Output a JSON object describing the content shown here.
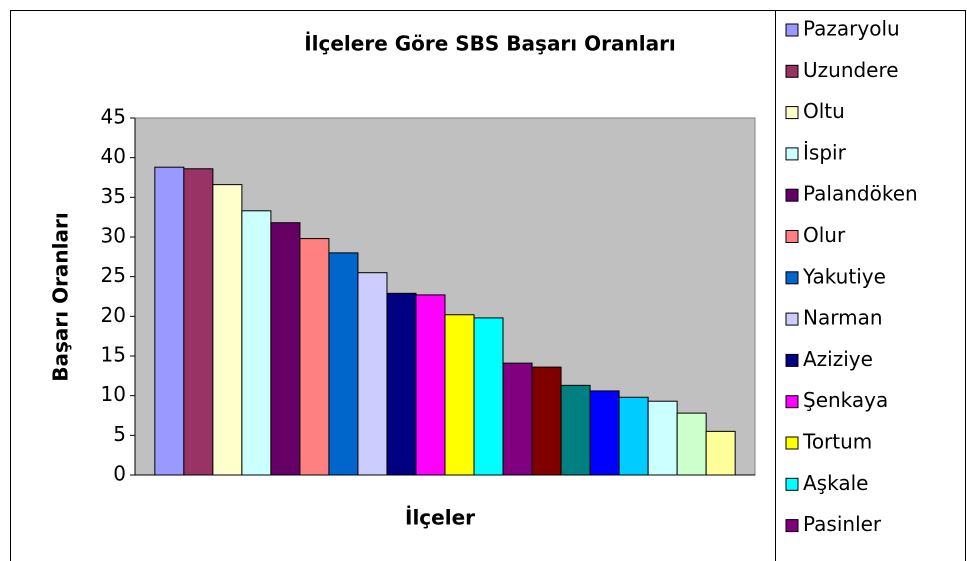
{
  "chart_data": {
    "type": "bar",
    "title": "İlçelere Göre SBS Başarı Oranları",
    "y_label": "Başarı Oranları",
    "x_label": "İlçeler",
    "categories": [
      null
    ],
    "series": [
      {
        "name": "Pazaryolu",
        "color": "#9999FF",
        "values": [
          38.8
        ]
      },
      {
        "name": "Uzundere",
        "color": "#993366",
        "values": [
          38.6
        ]
      },
      {
        "name": "Oltu",
        "color": "#FFFFCC",
        "values": [
          36.6
        ]
      },
      {
        "name": "İspir",
        "color": "#CCFFFF",
        "values": [
          33.3
        ]
      },
      {
        "name": "Palandöken",
        "color": "#660066",
        "values": [
          31.8
        ]
      },
      {
        "name": "Olur",
        "color": "#FF8080",
        "values": [
          29.8
        ]
      },
      {
        "name": "Yakutiye",
        "color": "#0066CC",
        "values": [
          28.0
        ]
      },
      {
        "name": "Narman",
        "color": "#CCCCFF",
        "values": [
          25.5
        ]
      },
      {
        "name": "Aziziye",
        "color": "#000080",
        "values": [
          22.9
        ]
      },
      {
        "name": "Şenkaya",
        "color": "#FF00FF",
        "values": [
          22.7
        ]
      },
      {
        "name": "Tortum",
        "color": "#FFFF00",
        "values": [
          20.2
        ]
      },
      {
        "name": "Aşkale",
        "color": "#00FFFF",
        "values": [
          19.8
        ]
      },
      {
        "name": "Pasinler",
        "color": "#800080",
        "values": [
          14.1
        ]
      },
      {
        "color": "#800000",
        "values": [
          13.6
        ]
      },
      {
        "color": "#008080",
        "values": [
          11.3
        ]
      },
      {
        "color": "#0000FF",
        "values": [
          10.6
        ]
      },
      {
        "color": "#00CCFF",
        "values": [
          9.8
        ]
      },
      {
        "color": "#CCFFFF",
        "values": [
          9.3
        ]
      },
      {
        "color": "#CCFFCC",
        "values": [
          7.8
        ]
      },
      {
        "color": "#FFFF99",
        "values": [
          5.5
        ]
      }
    ],
    "ylim": [
      0,
      45
    ],
    "yticks": [
      0,
      5,
      10,
      15,
      20,
      25,
      30,
      35,
      40,
      45
    ],
    "plot_background": "#C0C0C0",
    "legend": "right"
  }
}
